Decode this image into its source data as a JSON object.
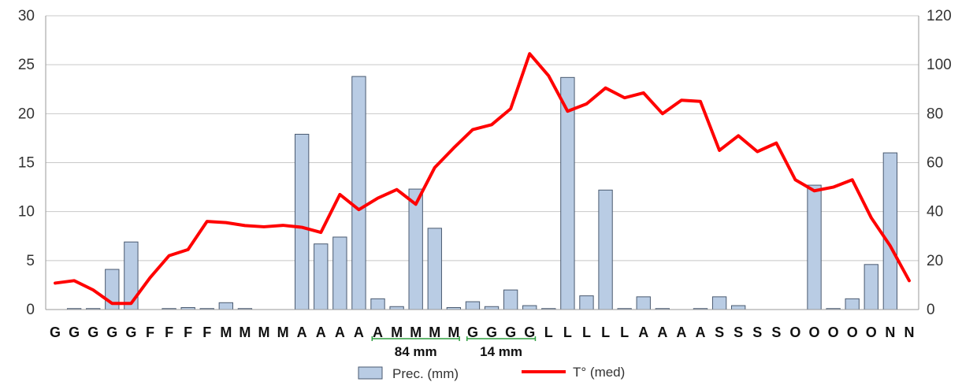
{
  "chart_data": {
    "type": "bar",
    "categories": [
      "G",
      "G",
      "G",
      "G",
      "G",
      "F",
      "F",
      "F",
      "F",
      "M",
      "M",
      "M",
      "M",
      "A",
      "A",
      "A",
      "A",
      "A",
      "M",
      "M",
      "M",
      "M",
      "G",
      "G",
      "G",
      "G",
      "L",
      "L",
      "L",
      "L",
      "L",
      "A",
      "A",
      "A",
      "A",
      "S",
      "S",
      "S",
      "S",
      "O",
      "O",
      "O",
      "O",
      "O",
      "N",
      "N"
    ],
    "series": [
      {
        "name": "Prec. (mm)",
        "type": "bar",
        "axis": "left",
        "color": "#b9cce4",
        "values": [
          0,
          0.1,
          0.1,
          4.1,
          6.9,
          0,
          0.1,
          0.2,
          0.1,
          0.7,
          0.1,
          0,
          0,
          17.9,
          6.7,
          7.4,
          23.8,
          1.1,
          0.3,
          12.3,
          8.3,
          0.2,
          0.8,
          0.3,
          2.0,
          0.4,
          0.1,
          23.7,
          1.4,
          12.2,
          0.1,
          1.3,
          0.1,
          0,
          0.1,
          1.3,
          0.4,
          0,
          0,
          0,
          12.7,
          0.1,
          1.1,
          4.6,
          16.0,
          0
        ]
      },
      {
        "name": "T° (med)",
        "type": "line",
        "axis": "right",
        "color": "#ff0000",
        "values": [
          10.8,
          11.8,
          8,
          2.5,
          2.5,
          13,
          22,
          24.5,
          36,
          35.5,
          34.3,
          33.8,
          34.4,
          33.6,
          31.5,
          47,
          40.8,
          45.5,
          49,
          43,
          58,
          66,
          73.5,
          75.5,
          82,
          104.5,
          95.5,
          81,
          84,
          90.5,
          86.5,
          88.5,
          80,
          85.5,
          85,
          65,
          71,
          64.5,
          68,
          53,
          48.5,
          50,
          53,
          37.5,
          26,
          11.8
        ]
      }
    ],
    "y_left": {
      "min": 0,
      "max": 30,
      "ticks": [
        0,
        5,
        10,
        15,
        20,
        25,
        30
      ]
    },
    "y_right": {
      "min": 0,
      "max": 120,
      "ticks": [
        0,
        20,
        40,
        60,
        80,
        100,
        120
      ]
    },
    "grid": true,
    "annotations": [
      {
        "text": "84 mm",
        "from_index": 17,
        "to_index": 21
      },
      {
        "text": "14 mm",
        "from_index": 22,
        "to_index": 25
      }
    ],
    "legend": {
      "position": "bottom",
      "items": [
        {
          "label": "Prec. (mm)",
          "kind": "bar"
        },
        {
          "label": "T° (med)",
          "kind": "line"
        }
      ]
    }
  }
}
